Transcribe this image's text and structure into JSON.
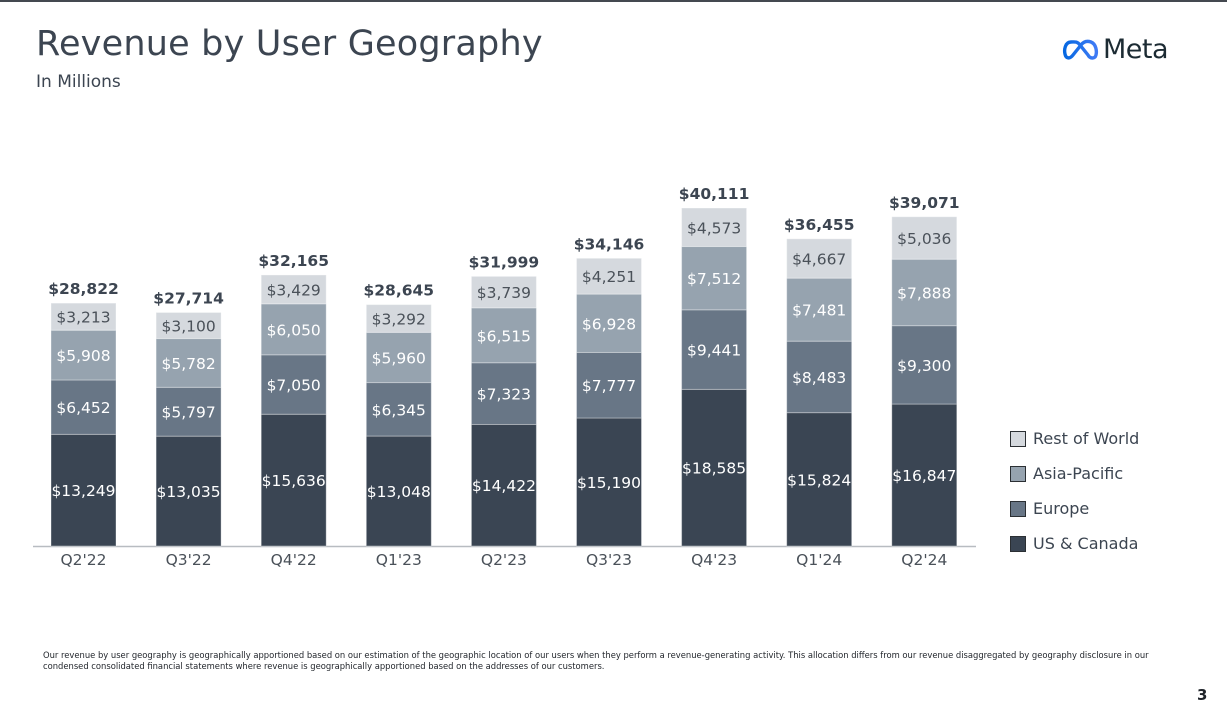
{
  "header": {
    "title": "Revenue by User Geography",
    "subtitle": "In Millions",
    "logo_text": "Meta",
    "logo_icon": "meta-infinity-icon"
  },
  "chart_data": {
    "type": "bar",
    "stacked": true,
    "title": "Revenue by User Geography",
    "subtitle": "In Millions",
    "xlabel": "",
    "ylabel": "",
    "grid": false,
    "legend_position": "right",
    "value_prefix": "$",
    "categories": [
      "Q2'22",
      "Q3'22",
      "Q4'22",
      "Q1'23",
      "Q2'23",
      "Q3'23",
      "Q4'23",
      "Q1'24",
      "Q2'24"
    ],
    "totals": [
      28822,
      27714,
      32165,
      28645,
      31999,
      34146,
      40111,
      36455,
      39071
    ],
    "series": [
      {
        "name": "US & Canada",
        "color": "#3a4553",
        "label_color": "#ffffff",
        "values": [
          13249,
          13035,
          15636,
          13048,
          14422,
          15190,
          18585,
          15824,
          16847
        ]
      },
      {
        "name": "Europe",
        "color": "#687686",
        "label_color": "#ffffff",
        "values": [
          6452,
          5797,
          7050,
          6345,
          7323,
          7777,
          9441,
          8483,
          9300
        ]
      },
      {
        "name": "Asia-Pacific",
        "color": "#96a3af",
        "label_color": "#ffffff",
        "values": [
          5908,
          5782,
          6050,
          5960,
          6515,
          6928,
          7512,
          7481,
          7888
        ]
      },
      {
        "name": "Rest of World",
        "color": "#d5d9de",
        "label_color": "#4a5159",
        "values": [
          3213,
          3100,
          3429,
          3292,
          3739,
          4251,
          4573,
          4667,
          5036
        ]
      }
    ],
    "ylim": [
      0,
      45000
    ]
  },
  "legend": {
    "items": [
      {
        "label": "Rest of World",
        "color": "#d5d9de"
      },
      {
        "label": "Asia-Pacific",
        "color": "#96a3af"
      },
      {
        "label": "Europe",
        "color": "#687686"
      },
      {
        "label": "US & Canada",
        "color": "#3a4553"
      }
    ]
  },
  "footnote": "Our revenue by user geography is geographically apportioned based on our estimation of the geographic location of our users when they perform a revenue-generating activity. This allocation differs from our revenue disaggregated by geography disclosure in our condensed consolidated financial statements where revenue is geographically apportioned based on the addresses of our customers.",
  "page_number": "3"
}
